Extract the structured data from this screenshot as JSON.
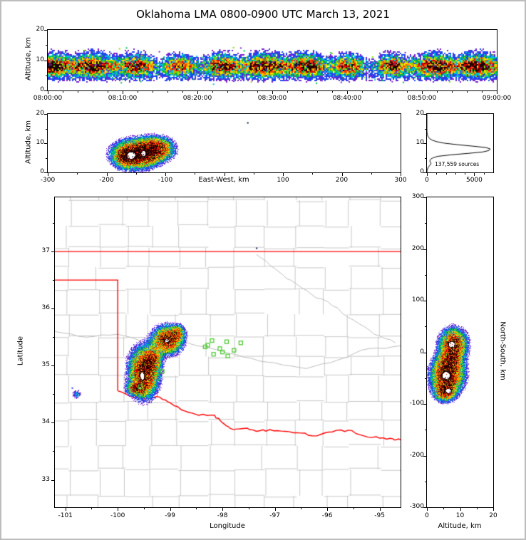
{
  "title": "Oklahoma LMA 0800-0900 UTC March 13, 2021",
  "density_colormap": {
    "thresholds": [
      0.07,
      0.13,
      0.19,
      0.26,
      0.33,
      0.4,
      0.5,
      0.6,
      0.8,
      0.86,
      0.95
    ],
    "colors": [
      "#7a22cc",
      "#2244ee",
      "#00c0d8",
      "#00bb44",
      "#88dd00",
      "#ffe000",
      "#ff9900",
      "#ff4400",
      "#e00000",
      "#7a0000",
      "#1c0200",
      "#ffffff"
    ]
  },
  "chart_data": [
    {
      "type": "heatmap",
      "name": "time-height",
      "ylabel": "Altitude, km",
      "ylim": [
        0,
        20
      ],
      "xtick_labels": [
        "08:00:00",
        "08:10:00",
        "08:20:00",
        "08:30:00",
        "08:40:00",
        "08:50:00",
        "09:00:00"
      ],
      "ytick_values": [
        0,
        10,
        20
      ],
      "band": {
        "center_alt_km": 8.1,
        "sd_km": 1.55,
        "upper_fringe_km": 11.5,
        "lower_fringe_km": 4.5
      }
    },
    {
      "type": "heatmap",
      "name": "east-west-altitude",
      "xlabel": "East-West, km",
      "ylabel": "Altitude, km",
      "xlim": [
        -300,
        300
      ],
      "ylim": [
        0,
        20
      ],
      "xtick_values": [
        -300,
        -200,
        -100,
        0,
        100,
        200,
        300
      ],
      "xtick_labels": [
        "-300",
        "-200",
        "-100",
        "",
        "100",
        "200",
        "300"
      ],
      "ytick_values": [
        0,
        10,
        20
      ],
      "blobs": [
        [
          -150,
          6.2,
          20,
          2.5,
          1.0
        ],
        [
          -168,
          5.4,
          9,
          1.7,
          0.8
        ],
        [
          -115,
          8.0,
          15,
          2.1,
          0.8
        ],
        [
          -133,
          7.0,
          12,
          2.1,
          0.55
        ]
      ],
      "cores": [
        [
          -158,
          5.8,
          9,
          1.5
        ],
        [
          -137,
          6.5,
          5,
          1.1
        ]
      ],
      "specks": [
        [
          39,
          17.2,
          "#00184f"
        ]
      ]
    },
    {
      "type": "line",
      "name": "altitude-source-histogram",
      "annotation": "137,559 sources",
      "xlim": [
        0,
        7000
      ],
      "ylim": [
        0,
        20
      ],
      "xtick_values": [
        0,
        5000
      ],
      "xtick_labels": [
        "0",
        "5000"
      ],
      "ytick_values": [
        0,
        10,
        20
      ],
      "profile": [
        [
          0,
          0
        ],
        [
          0.6,
          15
        ],
        [
          1.2,
          60
        ],
        [
          1.8,
          150
        ],
        [
          2.4,
          300
        ],
        [
          3,
          430
        ],
        [
          3.4,
          385
        ],
        [
          3.8,
          315
        ],
        [
          4.2,
          330
        ],
        [
          4.6,
          425
        ],
        [
          5,
          650
        ],
        [
          5.5,
          1150
        ],
        [
          6,
          2500
        ],
        [
          6.5,
          4300
        ],
        [
          7,
          5900
        ],
        [
          7.5,
          6550
        ],
        [
          8,
          6700
        ],
        [
          8.5,
          6250
        ],
        [
          9,
          4800
        ],
        [
          9.5,
          3200
        ],
        [
          10,
          1850
        ],
        [
          10.5,
          1050
        ],
        [
          11,
          580
        ],
        [
          11.5,
          320
        ],
        [
          12,
          170
        ],
        [
          12.5,
          85
        ],
        [
          13,
          40
        ],
        [
          13.5,
          18
        ],
        [
          14,
          7
        ],
        [
          15,
          2
        ],
        [
          16,
          1
        ],
        [
          20,
          0
        ]
      ]
    },
    {
      "type": "heatmap",
      "name": "plan-view",
      "xlabel": "Longitude",
      "ylabel": "Latitude",
      "lon_range": [
        -101.2,
        -94.6
      ],
      "lat_range": [
        32.52,
        37.95
      ],
      "xtick_values": [
        -101,
        -100,
        -99,
        -98,
        -97,
        -96,
        -95
      ],
      "ytick_values": [
        33,
        34,
        35,
        36,
        37
      ],
      "county_color": "#c8c8c8",
      "state_border_color": "#ff0000",
      "station_color": "#4ecb33",
      "oklahoma_border": {
        "north_lat": 37.0,
        "panhandle_south_lat": 36.5,
        "main_west_lon": -100.0,
        "red_river": [
          [
            -100.0,
            34.56
          ],
          [
            -99.7,
            34.45
          ],
          [
            -99.45,
            34.42
          ],
          [
            -99.2,
            34.45
          ],
          [
            -99.0,
            34.35
          ],
          [
            -98.7,
            34.2
          ],
          [
            -98.45,
            34.13
          ],
          [
            -98.15,
            34.13
          ],
          [
            -98.0,
            34.0
          ],
          [
            -97.85,
            33.9
          ],
          [
            -97.6,
            33.9
          ],
          [
            -97.35,
            33.85
          ],
          [
            -97.1,
            33.88
          ],
          [
            -96.8,
            33.85
          ],
          [
            -96.5,
            33.82
          ],
          [
            -96.2,
            33.77
          ],
          [
            -95.9,
            33.84
          ],
          [
            -95.6,
            33.87
          ],
          [
            -95.3,
            33.77
          ],
          [
            -95.0,
            33.73
          ],
          [
            -94.75,
            33.72
          ],
          [
            -94.6,
            33.7
          ]
        ]
      },
      "rivers": [
        [
          [
            -101.2,
            35.6
          ],
          [
            -100.6,
            35.5
          ],
          [
            -100.0,
            35.55
          ],
          [
            -99.4,
            35.4
          ],
          [
            -98.8,
            35.45
          ],
          [
            -98.2,
            35.3
          ],
          [
            -97.6,
            35.15
          ],
          [
            -97.0,
            35.05
          ],
          [
            -96.4,
            34.95
          ],
          [
            -95.8,
            35.1
          ],
          [
            -95.2,
            35.3
          ],
          [
            -94.6,
            35.35
          ]
        ],
        [
          [
            -97.35,
            36.95
          ],
          [
            -97.0,
            36.7
          ],
          [
            -96.7,
            36.5
          ],
          [
            -96.3,
            36.25
          ],
          [
            -95.9,
            36.05
          ],
          [
            -95.5,
            35.8
          ],
          [
            -95.1,
            35.55
          ],
          [
            -94.7,
            35.4
          ]
        ]
      ],
      "blobs": [
        [
          -99.5,
          34.88,
          0.145,
          0.22,
          1.0
        ],
        [
          -99.62,
          34.6,
          0.1,
          0.055,
          0.85
        ],
        [
          -99.33,
          35.12,
          0.09,
          0.12,
          0.55
        ],
        [
          -99.05,
          35.45,
          0.15,
          0.125,
          0.9
        ],
        [
          -98.85,
          35.58,
          0.07,
          0.07,
          0.45
        ],
        [
          -100.78,
          34.5,
          0.05,
          0.05,
          0.13
        ]
      ],
      "cores": [
        [
          -99.53,
          34.82,
          0.05,
          0.085
        ],
        [
          -99.58,
          34.61,
          0.035,
          0.022
        ],
        [
          -99.06,
          35.44,
          0.045,
          0.035
        ]
      ],
      "specks": [
        [
          -97.36,
          37.07,
          "#00184f"
        ],
        [
          -100.88,
          34.62,
          "#2233ee"
        ]
      ],
      "stations": [
        [
          -98.2,
          35.44
        ],
        [
          -97.92,
          35.42
        ],
        [
          -97.65,
          35.4
        ],
        [
          -98.33,
          35.33
        ],
        [
          -98.05,
          35.3
        ],
        [
          -97.78,
          35.27
        ],
        [
          -98.17,
          35.2
        ],
        [
          -97.9,
          35.17
        ],
        [
          -98.28,
          35.36
        ],
        [
          -98.0,
          35.24
        ],
        [
          -99.57,
          34.63
        ],
        [
          -99.15,
          34.9
        ]
      ]
    },
    {
      "type": "heatmap",
      "name": "north-south-altitude",
      "xlabel": "Altitude, km",
      "ylabel": "North-South, km",
      "xlim": [
        0,
        20
      ],
      "ylim": [
        -300,
        300
      ],
      "xtick_values": [
        0,
        10,
        20
      ],
      "ytick_values": [
        300,
        200,
        100,
        0,
        -100,
        -200,
        -300
      ],
      "blobs": [
        [
          6.2,
          -45,
          2.5,
          18,
          1.0
        ],
        [
          5.4,
          -75,
          1.7,
          10,
          0.8
        ],
        [
          8.0,
          15,
          2.1,
          16,
          0.85
        ],
        [
          7.0,
          -15,
          2.1,
          13,
          0.55
        ]
      ],
      "cores": [
        [
          5.8,
          -45,
          1.5,
          9
        ],
        [
          6.5,
          -75,
          1.1,
          5
        ],
        [
          7.5,
          15,
          1.2,
          7
        ]
      ]
    }
  ]
}
